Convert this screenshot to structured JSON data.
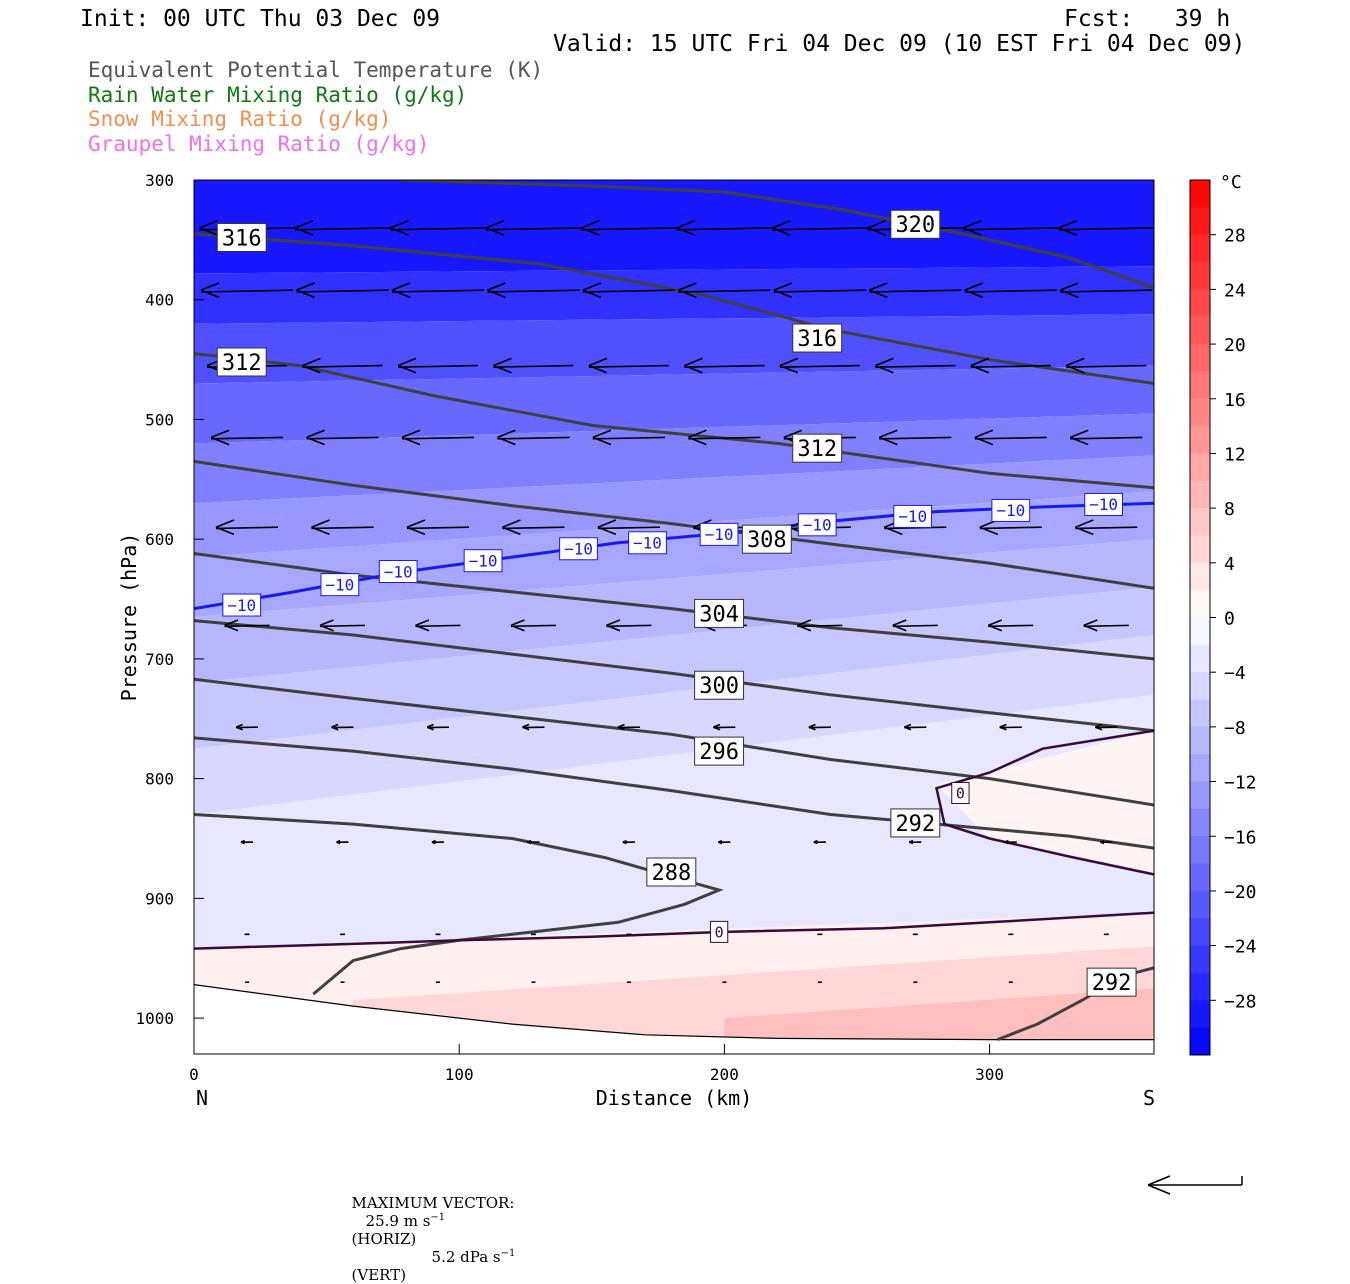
{
  "header": {
    "init": "Init: 00 UTC Thu 03 Dec 09",
    "fcst": "Fcst:   39 h",
    "valid": "Valid: 15 UTC Fri 04 Dec 09 (10 EST Fri 04 Dec 09)"
  },
  "legend": [
    {
      "label": "Equivalent Potential Temperature (K)",
      "color": "#555555"
    },
    {
      "label": "Rain Water Mixing Ratio (g/kg)",
      "color": "#107a10"
    },
    {
      "label": "Snow Mixing Ratio (g/kg)",
      "color": "#f09050"
    },
    {
      "label": "Graupel Mixing Ratio (g/kg)",
      "color": "#f070f0"
    }
  ],
  "chart_data": {
    "type": "cross-section",
    "xlabel": "Distance (km)",
    "ylabel": "Pressure (hPa)",
    "xlim": [
      0,
      362
    ],
    "ylim": [
      300,
      1030
    ],
    "y_axis_inverted": true,
    "x_ticks": [
      0,
      100,
      200,
      300
    ],
    "y_ticks": [
      300,
      400,
      500,
      600,
      700,
      800,
      900,
      1000
    ],
    "left_end_label": "N",
    "right_end_label": "S",
    "colorbar": {
      "unit": "°C",
      "range": [
        -32,
        32
      ],
      "step": 2,
      "labels": [
        28,
        24,
        20,
        16,
        12,
        8,
        4,
        0,
        -4,
        -8,
        -12,
        -16,
        -20,
        -24,
        -28
      ],
      "cold_color": "#0000ff",
      "warm_color": "#ff0000"
    },
    "theta_e_contours": [
      {
        "value": 320,
        "points": [
          [
            78,
            300
          ],
          [
            150,
            305
          ],
          [
            200,
            310
          ],
          [
            245,
            325
          ],
          [
            290,
            345
          ],
          [
            330,
            365
          ],
          [
            362,
            390
          ]
        ]
      },
      {
        "value": 316,
        "points": [
          [
            0,
            345
          ],
          [
            60,
            355
          ],
          [
            130,
            370
          ],
          [
            190,
            395
          ],
          [
            240,
            425
          ],
          [
            300,
            450
          ],
          [
            362,
            470
          ]
        ]
      },
      {
        "value": 312,
        "points": [
          [
            0,
            445
          ],
          [
            40,
            455
          ],
          [
            90,
            480
          ],
          [
            150,
            505
          ],
          [
            220,
            520
          ],
          [
            300,
            545
          ],
          [
            362,
            557
          ]
        ]
      },
      {
        "value": 308,
        "points": [
          [
            0,
            535
          ],
          [
            60,
            555
          ],
          [
            120,
            572
          ],
          [
            180,
            587
          ],
          [
            240,
            604
          ],
          [
            300,
            620
          ],
          [
            362,
            641
          ]
        ]
      },
      {
        "value": 304,
        "points": [
          [
            0,
            612
          ],
          [
            60,
            630
          ],
          [
            120,
            644
          ],
          [
            180,
            658
          ],
          [
            240,
            674
          ],
          [
            300,
            686
          ],
          [
            362,
            700
          ]
        ]
      },
      {
        "value": 300,
        "points": [
          [
            0,
            668
          ],
          [
            60,
            680
          ],
          [
            120,
            696
          ],
          [
            180,
            712
          ],
          [
            240,
            730
          ],
          [
            300,
            745
          ],
          [
            362,
            760
          ]
        ]
      },
      {
        "value": 296,
        "points": [
          [
            0,
            717
          ],
          [
            60,
            733
          ],
          [
            120,
            748
          ],
          [
            180,
            763
          ],
          [
            240,
            784
          ],
          [
            300,
            800
          ],
          [
            362,
            822
          ]
        ]
      },
      {
        "value": 292,
        "points": [
          [
            0,
            766
          ],
          [
            60,
            777
          ],
          [
            120,
            792
          ],
          [
            180,
            810
          ],
          [
            240,
            830
          ],
          [
            290,
            840
          ],
          [
            330,
            848
          ],
          [
            362,
            858
          ]
        ]
      },
      {
        "value": 288,
        "points": [
          [
            0,
            830
          ],
          [
            60,
            838
          ],
          [
            120,
            850
          ],
          [
            155,
            866
          ],
          [
            185,
            885
          ],
          [
            198,
            893
          ],
          [
            185,
            905
          ],
          [
            160,
            920
          ],
          [
            120,
            930
          ],
          [
            100,
            935
          ],
          [
            78,
            942
          ],
          [
            60,
            952
          ],
          [
            45,
            980
          ]
        ]
      },
      {
        "value": 292,
        "points": [
          [
            303,
            1018
          ],
          [
            318,
            1005
          ],
          [
            335,
            985
          ],
          [
            350,
            965
          ],
          [
            362,
            958
          ]
        ]
      }
    ],
    "isotherms": [
      {
        "value": -10,
        "points": [
          [
            0,
            658
          ],
          [
            35,
            645
          ],
          [
            80,
            627
          ],
          [
            120,
            615
          ],
          [
            160,
            603
          ],
          [
            200,
            595
          ],
          [
            240,
            585
          ],
          [
            280,
            577
          ],
          [
            320,
            573
          ],
          [
            362,
            570
          ]
        ]
      },
      {
        "value": 0,
        "points": [
          [
            0,
            942
          ],
          [
            60,
            938
          ],
          [
            100,
            935
          ],
          [
            150,
            932
          ],
          [
            200,
            928
          ],
          [
            260,
            925
          ],
          [
            300,
            920
          ],
          [
            362,
            912
          ]
        ]
      },
      {
        "value": 0,
        "points": [
          [
            362,
            760
          ],
          [
            320,
            775
          ],
          [
            300,
            795
          ],
          [
            280,
            808
          ],
          [
            283,
            838
          ],
          [
            300,
            850
          ],
          [
            330,
            865
          ],
          [
            362,
            880
          ]
        ]
      }
    ],
    "theta_e_labels": [
      {
        "text": "320",
        "x": 272,
        "p": 337
      },
      {
        "text": "316",
        "x": 18,
        "p": 348
      },
      {
        "text": "316",
        "x": 235,
        "p": 432
      },
      {
        "text": "312",
        "x": 18,
        "p": 452
      },
      {
        "text": "312",
        "x": 235,
        "p": 524
      },
      {
        "text": "308",
        "x": 216,
        "p": 600
      },
      {
        "text": "304",
        "x": 198,
        "p": 662
      },
      {
        "text": "300",
        "x": 198,
        "p": 722
      },
      {
        "text": "296",
        "x": 198,
        "p": 777
      },
      {
        "text": "292",
        "x": 272,
        "p": 837
      },
      {
        "text": "288",
        "x": 180,
        "p": 878
      },
      {
        "text": "292",
        "x": 346,
        "p": 970
      }
    ],
    "isotherm_labels": [
      {
        "text": "−10",
        "x": 18,
        "p": 655
      },
      {
        "text": "−10",
        "x": 55,
        "p": 638
      },
      {
        "text": "−10",
        "x": 77,
        "p": 627
      },
      {
        "text": "−10",
        "x": 109,
        "p": 618
      },
      {
        "text": "−10",
        "x": 145,
        "p": 608
      },
      {
        "text": "−10",
        "x": 171,
        "p": 603
      },
      {
        "text": "−10",
        "x": 198,
        "p": 596
      },
      {
        "text": "−10",
        "x": 235,
        "p": 588
      },
      {
        "text": "−10",
        "x": 271,
        "p": 581
      },
      {
        "text": "−10",
        "x": 308,
        "p": 576
      },
      {
        "text": "−10",
        "x": 343,
        "p": 571
      },
      {
        "text": "0",
        "x": 289,
        "p": 812
      },
      {
        "text": "0",
        "x": 198,
        "p": 928
      }
    ],
    "wind_rows": [
      {
        "p": 340,
        "len": 95
      },
      {
        "p": 392,
        "len": 92
      },
      {
        "p": 455,
        "len": 80
      },
      {
        "p": 515,
        "len": 72
      },
      {
        "p": 590,
        "len": 62
      },
      {
        "p": 672,
        "len": 45
      },
      {
        "p": 757,
        "len": 22
      },
      {
        "p": 853,
        "len": 12
      },
      {
        "p": 930,
        "len": 5
      },
      {
        "p": 970,
        "len": 4
      }
    ]
  },
  "footer": {
    "max_vector_label": "MAXIMUM VECTOR:",
    "horiz_value": "25.9 m s",
    "horiz_unit": "(HORIZ)",
    "vert_value": "5.2 dPa s",
    "vert_unit": "(VERT)",
    "exponent": "−1"
  }
}
